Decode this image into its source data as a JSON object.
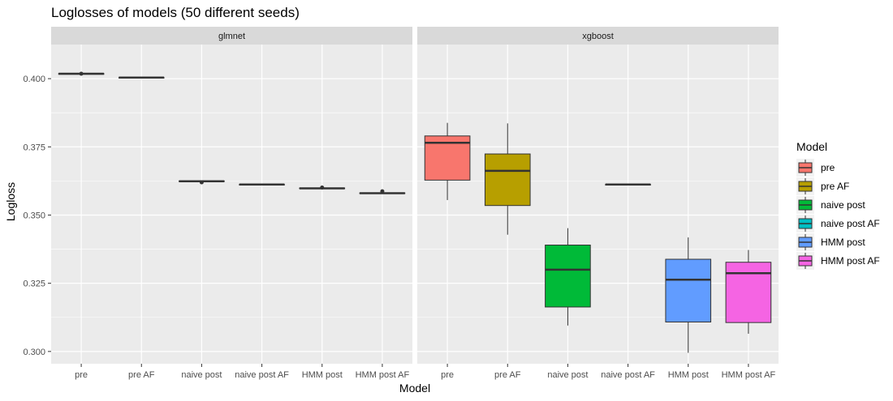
{
  "chart_data": {
    "type": "boxplot",
    "title": "Loglosses of models (50 different seeds)",
    "xlabel": "Model",
    "ylabel": "Logloss",
    "ylim": [
      0.2955,
      0.4125
    ],
    "yticks": [
      0.3,
      0.325,
      0.35,
      0.375,
      0.4
    ],
    "ytick_labels": [
      "0.300",
      "0.325",
      "0.350",
      "0.375",
      "0.400"
    ],
    "categories": [
      "pre",
      "pre AF",
      "naive post",
      "naive post AF",
      "HMM post",
      "HMM post AF"
    ],
    "facets": [
      {
        "name": "glmnet",
        "boxes": [
          {
            "category": "pre",
            "min": 0.4015,
            "q1": 0.4016,
            "median": 0.4018,
            "q3": 0.4019,
            "max": 0.402,
            "outliers": [
              0.4018
            ]
          },
          {
            "category": "pre AF",
            "min": 0.4003,
            "q1": 0.4003,
            "median": 0.4004,
            "q3": 0.4004,
            "max": 0.4004,
            "outliers": []
          },
          {
            "category": "naive post",
            "min": 0.3622,
            "q1": 0.3623,
            "median": 0.3624,
            "q3": 0.3625,
            "max": 0.3626,
            "outliers": [
              0.362
            ]
          },
          {
            "category": "naive post AF",
            "min": 0.3611,
            "q1": 0.3611,
            "median": 0.3612,
            "q3": 0.3612,
            "max": 0.3613,
            "outliers": []
          },
          {
            "category": "HMM post",
            "min": 0.3596,
            "q1": 0.3597,
            "median": 0.3598,
            "q3": 0.3599,
            "max": 0.36,
            "outliers": [
              0.3601
            ]
          },
          {
            "category": "HMM post AF",
            "min": 0.3578,
            "q1": 0.3579,
            "median": 0.358,
            "q3": 0.3581,
            "max": 0.3582,
            "outliers": [
              0.3587
            ]
          }
        ]
      },
      {
        "name": "xgboost",
        "boxes": [
          {
            "category": "pre",
            "min": 0.3555,
            "q1": 0.3628,
            "median": 0.3765,
            "q3": 0.379,
            "max": 0.3838,
            "outliers": []
          },
          {
            "category": "pre AF",
            "min": 0.3428,
            "q1": 0.3535,
            "median": 0.3662,
            "q3": 0.3724,
            "max": 0.3836,
            "outliers": []
          },
          {
            "category": "naive post",
            "min": 0.3095,
            "q1": 0.3163,
            "median": 0.33,
            "q3": 0.339,
            "max": 0.3452,
            "outliers": []
          },
          {
            "category": "naive post AF",
            "min": 0.3611,
            "q1": 0.3611,
            "median": 0.3612,
            "q3": 0.3612,
            "max": 0.3613,
            "outliers": []
          },
          {
            "category": "HMM post",
            "min": 0.2995,
            "q1": 0.3108,
            "median": 0.3263,
            "q3": 0.3338,
            "max": 0.3418,
            "outliers": []
          },
          {
            "category": "HMM post AF",
            "min": 0.3065,
            "q1": 0.3106,
            "median": 0.3287,
            "q3": 0.3327,
            "max": 0.3372,
            "outliers": []
          }
        ]
      }
    ],
    "legend": {
      "title": "Model",
      "placement": "right",
      "entries": [
        {
          "name": "pre",
          "color": "#F8766D"
        },
        {
          "name": "pre AF",
          "color": "#B79F00"
        },
        {
          "name": "naive post",
          "color": "#00BA38"
        },
        {
          "name": "naive post AF",
          "color": "#00BFC4"
        },
        {
          "name": "HMM post",
          "color": "#619CFF"
        },
        {
          "name": "HMM post AF",
          "color": "#F564E3"
        }
      ]
    },
    "colors": {
      "panel_bg": "#EBEBEB",
      "strip_bg": "#D9D9D9",
      "grid": "#FFFFFF",
      "box_line": "#333333"
    }
  }
}
